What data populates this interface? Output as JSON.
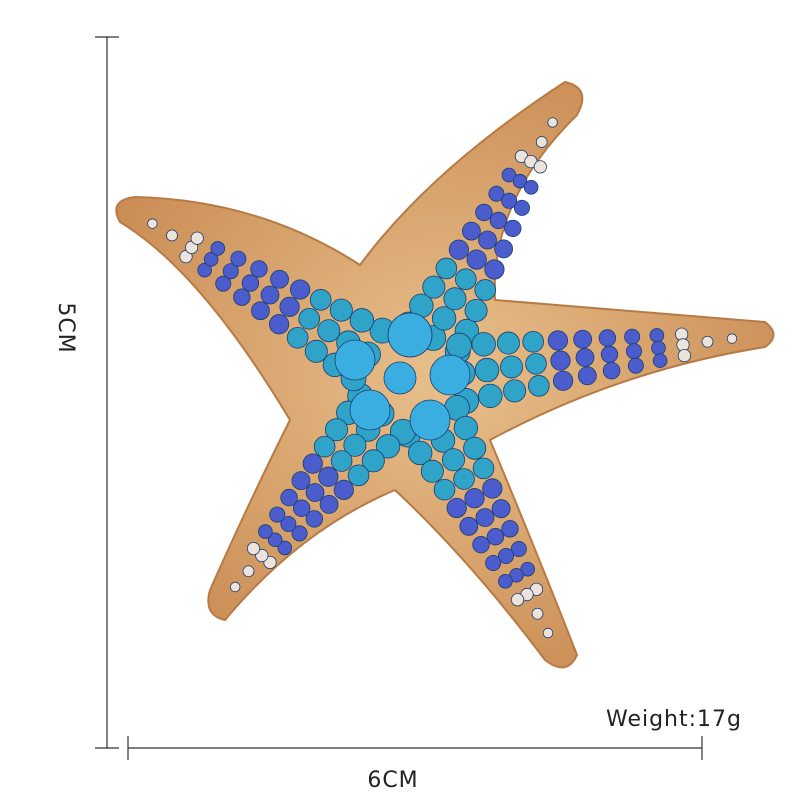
{
  "height_label": "5CM",
  "width_label": "6CM",
  "weight_label": "Weight:17g"
}
